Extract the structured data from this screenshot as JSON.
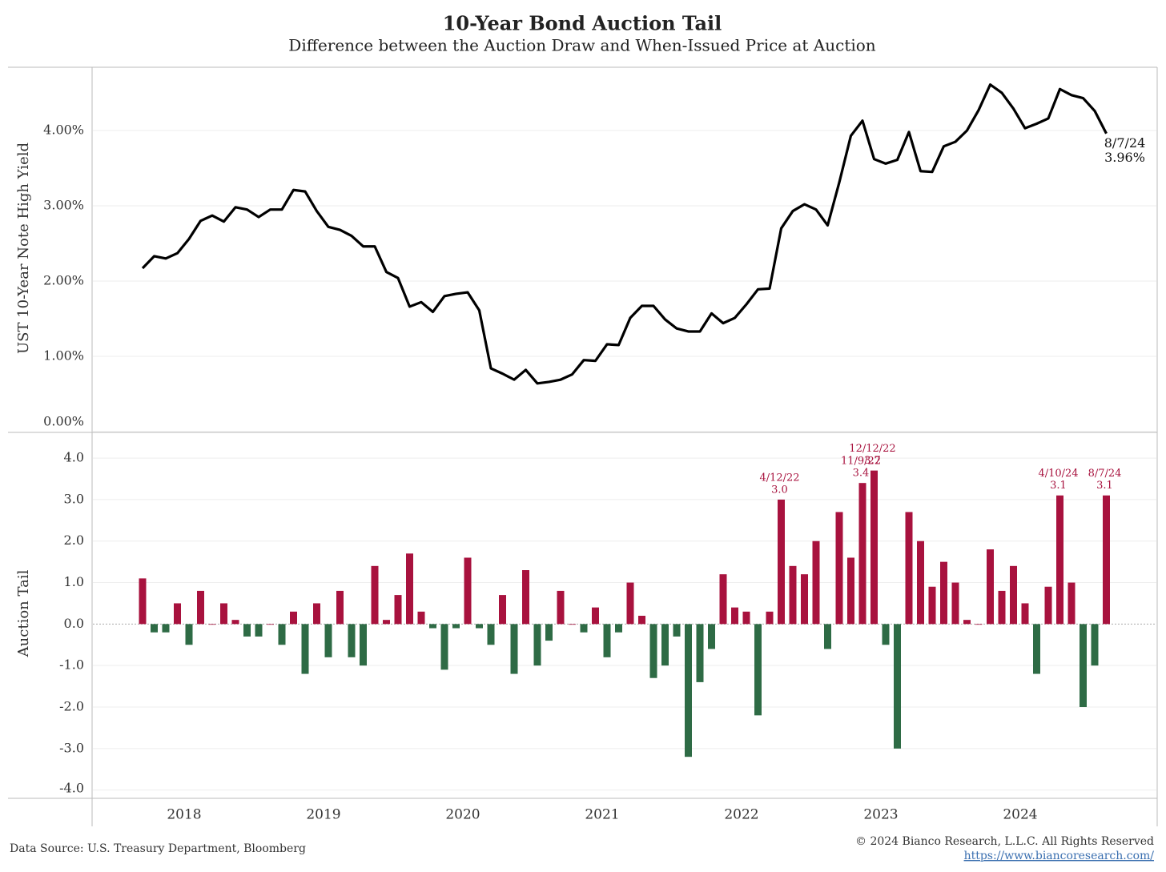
{
  "chart_data": [
    {
      "type": "line",
      "title": "10-Year Bond Auction Tail",
      "subtitle": "Difference between the Auction Draw and When-Issued Price at Auction",
      "ylabel": "UST 10-Year Note High Yield",
      "color": "#000000",
      "values": [
        2.17,
        2.33,
        2.3,
        2.37,
        2.56,
        2.8,
        2.87,
        2.79,
        2.98,
        2.95,
        2.85,
        2.95,
        2.95,
        3.21,
        3.19,
        2.93,
        2.72,
        2.68,
        2.6,
        2.46,
        2.46,
        2.12,
        2.04,
        1.66,
        1.72,
        1.59,
        1.8,
        1.83,
        1.85,
        1.61,
        0.84,
        0.77,
        0.69,
        0.82,
        0.64,
        0.66,
        0.69,
        0.76,
        0.95,
        0.94,
        1.16,
        1.15,
        1.51,
        1.67,
        1.67,
        1.49,
        1.37,
        1.33,
        1.33,
        1.57,
        1.44,
        1.51,
        1.69,
        1.89,
        1.9,
        2.7,
        2.93,
        3.02,
        2.95,
        2.74,
        3.31,
        3.93,
        4.13,
        3.62,
        3.56,
        3.61,
        3.98,
        3.46,
        3.45,
        3.79,
        3.85,
        4.0,
        4.27,
        4.61,
        4.5,
        4.29,
        4.03,
        4.09,
        4.16,
        4.55,
        4.47,
        4.43,
        4.26,
        3.96
      ],
      "value_labels": [
        null,
        null,
        null,
        null,
        null,
        null,
        null,
        null,
        null,
        null,
        null,
        null,
        null,
        null,
        null,
        null,
        null,
        null,
        null,
        null,
        null,
        null,
        null,
        null,
        null,
        null,
        null,
        null,
        null,
        null,
        null,
        null,
        null,
        null,
        null,
        null,
        null,
        null,
        null,
        null,
        null,
        null,
        null,
        null,
        null,
        null,
        null,
        null,
        null,
        null,
        null,
        null,
        null,
        null,
        null,
        null,
        null,
        null,
        null,
        null,
        null,
        null,
        null,
        null,
        null,
        null,
        null,
        null,
        null,
        null,
        null,
        null,
        null,
        null,
        null,
        null,
        null,
        null,
        null,
        null,
        null,
        null,
        null,
        "3.96%"
      ],
      "annotation_dates": [
        null,
        null,
        null,
        null,
        null,
        null,
        null,
        null,
        null,
        null,
        null,
        null,
        null,
        null,
        null,
        null,
        null,
        null,
        null,
        null,
        null,
        null,
        null,
        null,
        null,
        null,
        null,
        null,
        null,
        null,
        null,
        null,
        null,
        null,
        null,
        null,
        null,
        null,
        null,
        null,
        null,
        null,
        null,
        null,
        null,
        null,
        null,
        null,
        null,
        null,
        null,
        null,
        null,
        null,
        null,
        null,
        null,
        null,
        null,
        null,
        null,
        null,
        null,
        null,
        null,
        null,
        null,
        null,
        null,
        null,
        null,
        null,
        null,
        null,
        null,
        null,
        null,
        null,
        null,
        null,
        null,
        null,
        null,
        "8/7/24"
      ],
      "ylim": [
        0,
        4.84
      ],
      "yticks": [
        {
          "value": 0,
          "label": "0.00%"
        },
        {
          "value": 1,
          "label": "1.00%"
        },
        {
          "value": 2,
          "label": "2.00%"
        },
        {
          "value": 3,
          "label": "3.00%"
        },
        {
          "value": 4,
          "label": "4.00%"
        }
      ],
      "grid": true
    },
    {
      "type": "bar",
      "ylabel": "Auction Tail",
      "positive_color": "#a8123e",
      "negative_color": "#2e6b45",
      "categories": [
        null,
        null,
        null,
        null,
        "2018",
        null,
        null,
        null,
        null,
        null,
        null,
        null,
        null,
        null,
        null,
        null,
        "2019",
        null,
        null,
        null,
        null,
        null,
        null,
        null,
        null,
        null,
        null,
        null,
        "2020",
        null,
        null,
        null,
        null,
        null,
        null,
        null,
        null,
        null,
        null,
        null,
        "2021",
        null,
        null,
        null,
        null,
        null,
        null,
        null,
        null,
        null,
        null,
        null,
        "2022",
        null,
        null,
        null,
        null,
        null,
        null,
        null,
        null,
        null,
        null,
        null,
        "2023",
        null,
        null,
        null,
        null,
        null,
        null,
        null,
        null,
        null,
        null,
        null,
        "2024",
        null,
        null,
        null,
        null,
        null,
        null,
        null
      ],
      "values": [
        1.1,
        -0.2,
        -0.2,
        0.5,
        -0.5,
        0.8,
        0.0,
        0.5,
        0.1,
        -0.3,
        -0.3,
        0.0,
        -0.5,
        0.3,
        -1.2,
        0.5,
        -0.8,
        0.8,
        -0.8,
        -1.0,
        1.4,
        0.1,
        0.7,
        1.7,
        0.3,
        -0.1,
        -1.1,
        -0.1,
        1.6,
        -0.1,
        -0.5,
        0.7,
        -1.2,
        1.3,
        -1.0,
        -0.4,
        0.8,
        0.0,
        -0.2,
        0.4,
        -0.8,
        -0.2,
        1.0,
        0.2,
        -1.3,
        -1.0,
        -0.3,
        -3.2,
        -1.4,
        -0.6,
        1.2,
        0.4,
        0.3,
        -2.2,
        0.3,
        3.0,
        1.4,
        1.2,
        2.0,
        -0.6,
        2.7,
        1.6,
        3.4,
        3.7,
        -0.5,
        -3.0,
        2.7,
        2.0,
        0.9,
        1.5,
        1.0,
        0.1,
        0.0,
        1.8,
        0.8,
        1.4,
        0.5,
        -1.2,
        0.9,
        3.1,
        1.0,
        -2.0,
        -1.0,
        3.1
      ],
      "value_labels": [
        null,
        null,
        null,
        null,
        null,
        null,
        null,
        null,
        null,
        null,
        null,
        null,
        null,
        null,
        null,
        null,
        null,
        null,
        null,
        null,
        null,
        null,
        null,
        null,
        null,
        null,
        null,
        null,
        null,
        null,
        null,
        null,
        null,
        null,
        null,
        null,
        null,
        null,
        null,
        null,
        null,
        null,
        null,
        null,
        null,
        null,
        null,
        null,
        null,
        null,
        null,
        null,
        null,
        null,
        null,
        "3.0",
        null,
        null,
        null,
        null,
        null,
        null,
        "3.4",
        "3.7",
        null,
        null,
        null,
        null,
        null,
        null,
        null,
        null,
        null,
        null,
        null,
        null,
        null,
        null,
        null,
        "3.1",
        null,
        null,
        null,
        "3.1"
      ],
      "annotation_dates": [
        null,
        null,
        null,
        null,
        null,
        null,
        null,
        null,
        null,
        null,
        null,
        null,
        null,
        null,
        null,
        null,
        null,
        null,
        null,
        null,
        null,
        null,
        null,
        null,
        null,
        null,
        null,
        null,
        null,
        null,
        null,
        null,
        null,
        null,
        null,
        null,
        null,
        null,
        null,
        null,
        null,
        null,
        null,
        null,
        null,
        null,
        null,
        null,
        null,
        null,
        null,
        null,
        null,
        null,
        null,
        "4/12/22",
        null,
        null,
        null,
        null,
        null,
        null,
        "11/9/22",
        "12/12/22",
        null,
        null,
        null,
        null,
        null,
        null,
        null,
        null,
        null,
        null,
        null,
        null,
        null,
        null,
        null,
        "4/10/24",
        null,
        null,
        null,
        "8/7/24"
      ],
      "ylim": [
        -4.2,
        4.6
      ],
      "yticks": [
        {
          "value": -4,
          "label": "-4.0"
        },
        {
          "value": -3,
          "label": "-3.0"
        },
        {
          "value": -2,
          "label": "-2.0"
        },
        {
          "value": -1,
          "label": "-1.0"
        },
        {
          "value": 0,
          "label": "0.0"
        },
        {
          "value": 1,
          "label": "1.0"
        },
        {
          "value": 2,
          "label": "2.0"
        },
        {
          "value": 3,
          "label": "3.0"
        },
        {
          "value": 4,
          "label": "4.0"
        }
      ],
      "grid": true
    }
  ],
  "footer": {
    "source": "Data Source: U.S. Treasury Department, Bloomberg",
    "copyright": "© 2024 Bianco Research, L.L.C. All Rights Reserved",
    "url": "https://www.biancoresearch.com/"
  }
}
